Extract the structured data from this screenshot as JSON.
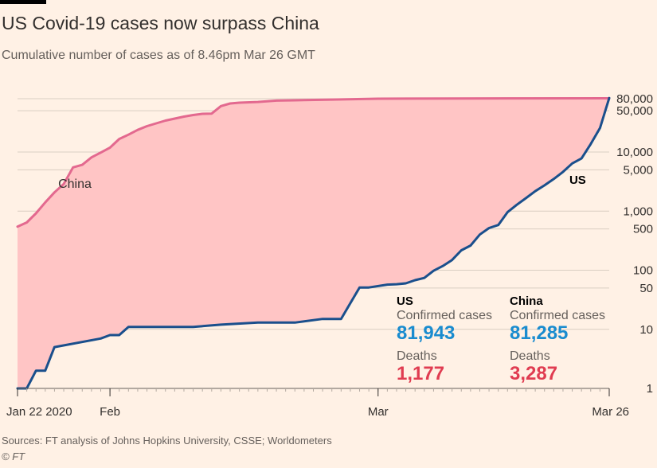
{
  "header": {
    "title": "US Covid-19 cases now surpass China",
    "subtitle": "Cumulative number of cases as of 8.46pm Mar 26 GMT"
  },
  "footer": {
    "source": "Sources: FT analysis of Johns Hopkins University, CSSE; Worldometers",
    "copyright": "© FT"
  },
  "stats": {
    "us": {
      "label": "US",
      "confirmed_label": "Confirmed cases",
      "confirmed": "81,943",
      "deaths_label": "Deaths",
      "deaths": "1,177"
    },
    "china": {
      "label": "China",
      "confirmed_label": "Confirmed cases",
      "confirmed": "81,285",
      "deaths_label": "Deaths",
      "deaths": "3,287"
    }
  },
  "colors": {
    "us": "#1a4f8c",
    "china": "#e3698f",
    "fill": "#ffc5c5",
    "background": "#fff1e5",
    "confirmed": "#1a8ccf",
    "deaths": "#e03c51"
  },
  "chart_data": {
    "type": "line",
    "y_scale": "log",
    "ylim": [
      1,
      80000
    ],
    "y_ticks": [
      {
        "value": 80000,
        "label": "80,000",
        "grid": true
      },
      {
        "value": 50000,
        "label": "50,000",
        "grid": true
      },
      {
        "value": 10000,
        "label": "10,000",
        "grid": true
      },
      {
        "value": 5000,
        "label": "5,000",
        "grid": true
      },
      {
        "value": 1000,
        "label": "1,000",
        "grid": true
      },
      {
        "value": 500,
        "label": "500",
        "grid": true
      },
      {
        "value": 100,
        "label": "100",
        "grid": true
      },
      {
        "value": 50,
        "label": "50",
        "grid": true
      },
      {
        "value": 10,
        "label": "10",
        "grid": true
      },
      {
        "value": 1,
        "label": "1",
        "grid": false
      }
    ],
    "x_range": [
      "2020-01-22",
      "2020-03-26"
    ],
    "x_ticks": [
      {
        "date": "2020-01-22",
        "label": "Jan 22 2020"
      },
      {
        "date": "2020-02-01",
        "label": "Feb"
      },
      {
        "date": "2020-03-01",
        "label": "Mar"
      },
      {
        "date": "2020-03-26",
        "label": "Mar 26"
      }
    ],
    "fill_between": [
      "China",
      "US"
    ],
    "series": [
      {
        "name": "China",
        "color": "#e3698f",
        "label_date": "2020-01-30",
        "label_value": 2800,
        "label_anchor": "end",
        "dates": [
          "2020-01-22",
          "2020-01-23",
          "2020-01-24",
          "2020-01-25",
          "2020-01-26",
          "2020-01-27",
          "2020-01-28",
          "2020-01-29",
          "2020-01-30",
          "2020-01-31",
          "2020-02-01",
          "2020-02-02",
          "2020-02-03",
          "2020-02-04",
          "2020-02-05",
          "2020-02-06",
          "2020-02-07",
          "2020-02-08",
          "2020-02-09",
          "2020-02-10",
          "2020-02-11",
          "2020-02-12",
          "2020-02-13",
          "2020-02-14",
          "2020-02-15",
          "2020-02-17",
          "2020-02-19",
          "2020-02-21",
          "2020-02-25",
          "2020-03-01",
          "2020-03-10",
          "2020-03-26"
        ],
        "values": [
          548,
          643,
          920,
          1406,
          2075,
          2877,
          5509,
          6087,
          8141,
          9802,
          11891,
          16630,
          19716,
          23707,
          27440,
          30587,
          34110,
          36814,
          39829,
          42354,
          44386,
          44759,
          59895,
          66358,
          68413,
          70548,
          74185,
          75077,
          77262,
          79968,
          80754,
          81285
        ]
      },
      {
        "name": "US",
        "color": "#1a4f8c",
        "label_date": "2020-03-21",
        "label_value": 3300,
        "label_anchor": "start",
        "dates": [
          "2020-01-22",
          "2020-01-23",
          "2020-01-24",
          "2020-01-25",
          "2020-01-26",
          "2020-01-31",
          "2020-02-01",
          "2020-02-02",
          "2020-02-03",
          "2020-02-05",
          "2020-02-10",
          "2020-02-13",
          "2020-02-17",
          "2020-02-21",
          "2020-02-24",
          "2020-02-25",
          "2020-02-26",
          "2020-02-28",
          "2020-02-29",
          "2020-03-02",
          "2020-03-03",
          "2020-03-04",
          "2020-03-05",
          "2020-03-06",
          "2020-03-07",
          "2020-03-08",
          "2020-03-09",
          "2020-03-10",
          "2020-03-11",
          "2020-03-12",
          "2020-03-13",
          "2020-03-14",
          "2020-03-15",
          "2020-03-16",
          "2020-03-17",
          "2020-03-18",
          "2020-03-19",
          "2020-03-20",
          "2020-03-21",
          "2020-03-22",
          "2020-03-23",
          "2020-03-24",
          "2020-03-25",
          "2020-03-26"
        ],
        "values": [
          1,
          1,
          2,
          2,
          5,
          7,
          8,
          8,
          11,
          11,
          11,
          12,
          13,
          13,
          15,
          15,
          15,
          51,
          51,
          57,
          58,
          60,
          68,
          74,
          98,
          118,
          149,
          217,
          262,
          402,
          518,
          583,
          959,
          1281,
          1663,
          2179,
          2727,
          3499,
          4632,
          6421,
          7786,
          13680,
          25489,
          81943
        ]
      }
    ]
  }
}
